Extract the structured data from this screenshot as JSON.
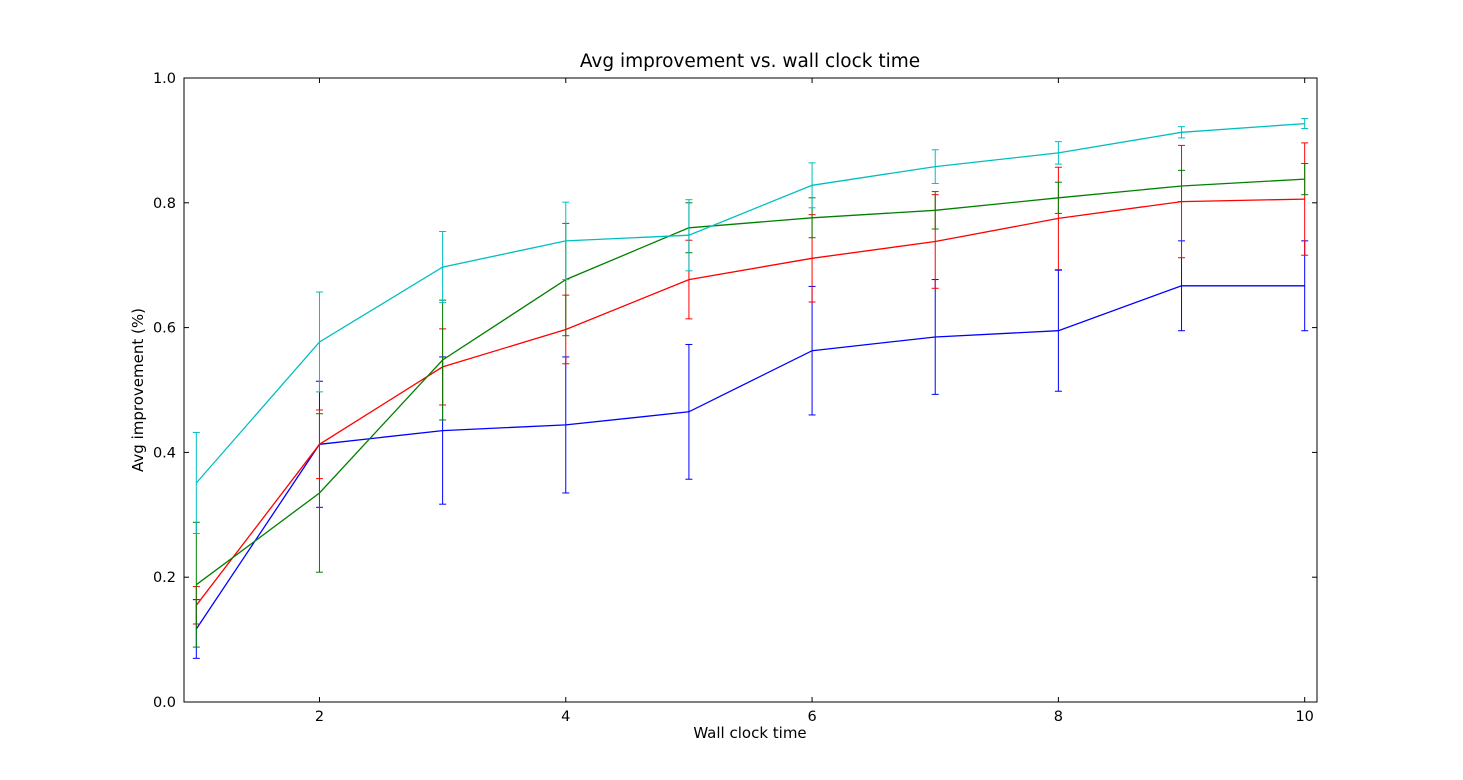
{
  "chart_data": {
    "type": "line",
    "title": "Avg improvement vs. wall clock time",
    "xlabel": "Wall clock time",
    "ylabel": "Avg improvement (%)",
    "xlim": [
      0.9,
      10.1
    ],
    "ylim": [
      0.0,
      1.0
    ],
    "xticks": [
      2,
      4,
      6,
      8,
      10
    ],
    "yticks": [
      0.0,
      0.2,
      0.4,
      0.6,
      0.8,
      1.0
    ],
    "xtick_labels": [
      "2",
      "4",
      "6",
      "8",
      "10"
    ],
    "ytick_labels": [
      "0.0",
      "0.2",
      "0.4",
      "0.6",
      "0.8",
      "1.0"
    ],
    "grid": false,
    "legend": false,
    "x": [
      1,
      2,
      3,
      4,
      5,
      6,
      7,
      8,
      9,
      10
    ],
    "series": [
      {
        "color": "#0000ff",
        "values": [
          0.117,
          0.413,
          0.435,
          0.444,
          0.465,
          0.563,
          0.585,
          0.595,
          0.667,
          0.667
        ],
        "err": [
          0.047,
          0.101,
          0.118,
          0.109,
          0.108,
          0.103,
          0.092,
          0.097,
          0.072,
          0.072
        ]
      },
      {
        "color": "#ff0000",
        "values": [
          0.155,
          0.413,
          0.537,
          0.597,
          0.677,
          0.711,
          0.738,
          0.775,
          0.802,
          0.806
        ],
        "err": [
          0.03,
          0.055,
          0.061,
          0.055,
          0.063,
          0.07,
          0.075,
          0.082,
          0.09,
          0.09
        ]
      },
      {
        "color": "#008000",
        "values": [
          0.188,
          0.335,
          0.548,
          0.677,
          0.76,
          0.776,
          0.788,
          0.808,
          0.827,
          0.838
        ],
        "err": [
          0.1,
          0.127,
          0.096,
          0.09,
          0.04,
          0.032,
          0.03,
          0.025,
          0.025,
          0.025
        ]
      },
      {
        "color": "#00bfbf",
        "values": [
          0.351,
          0.577,
          0.697,
          0.739,
          0.748,
          0.828,
          0.858,
          0.88,
          0.913,
          0.927
        ],
        "err": [
          0.081,
          0.08,
          0.057,
          0.062,
          0.057,
          0.036,
          0.027,
          0.018,
          0.009,
          0.008
        ]
      }
    ]
  }
}
